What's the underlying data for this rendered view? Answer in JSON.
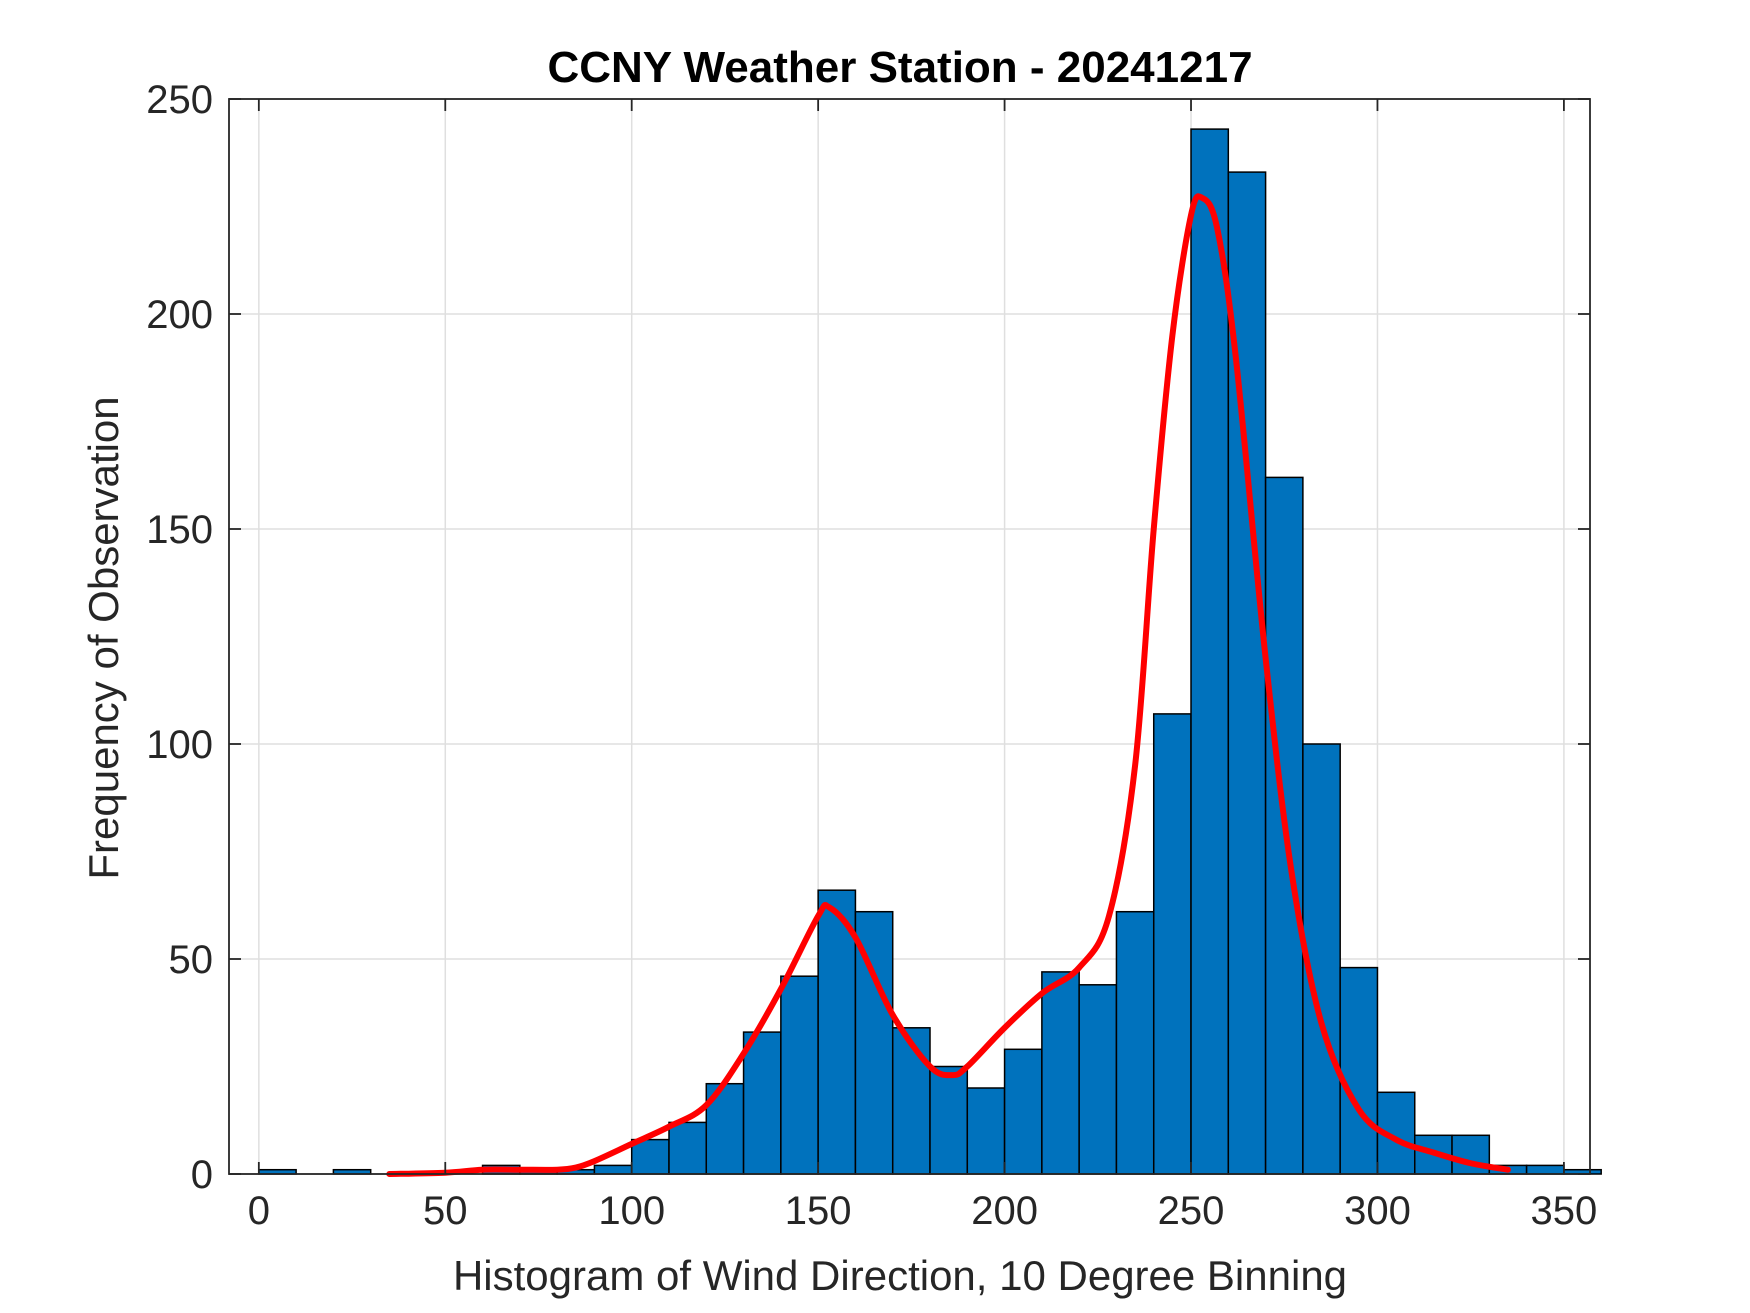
{
  "chart_data": {
    "type": "bar",
    "title": "CCNY Weather Station - 20241217",
    "xlabel": "Histogram of Wind Direction, 10 Degree Binning",
    "ylabel": "Frequency of Observation",
    "xlim": [
      -8,
      357
    ],
    "ylim": [
      0,
      250
    ],
    "xticks": [
      0,
      50,
      100,
      150,
      200,
      250,
      300,
      350
    ],
    "yticks": [
      0,
      50,
      100,
      150,
      200,
      250
    ],
    "grid": true,
    "bin_width": 10,
    "bin_edges": [
      0,
      10,
      20,
      30,
      40,
      50,
      60,
      70,
      80,
      90,
      100,
      110,
      120,
      130,
      140,
      150,
      160,
      170,
      180,
      190,
      200,
      210,
      220,
      230,
      240,
      250,
      260,
      270,
      280,
      290,
      300,
      310,
      320,
      330,
      340,
      350
    ],
    "values": [
      1,
      0,
      1,
      0,
      0,
      0,
      2,
      1,
      1,
      2,
      8,
      12,
      21,
      33,
      46,
      66,
      61,
      34,
      25,
      20,
      29,
      47,
      44,
      61,
      107,
      243,
      233,
      162,
      100,
      48,
      19,
      9,
      9,
      2,
      2,
      1
    ],
    "bar_color": "#0072BD",
    "bar_edge_color": "#000000",
    "fit_line": {
      "color": "#FF0000",
      "points": [
        [
          35,
          0
        ],
        [
          50,
          0.3
        ],
        [
          60,
          1
        ],
        [
          70,
          1
        ],
        [
          80,
          1
        ],
        [
          85,
          1.5
        ],
        [
          90,
          3
        ],
        [
          100,
          7
        ],
        [
          110,
          11
        ],
        [
          120,
          16
        ],
        [
          130,
          28
        ],
        [
          140,
          43
        ],
        [
          150,
          60
        ],
        [
          153,
          62
        ],
        [
          160,
          55
        ],
        [
          170,
          37
        ],
        [
          180,
          25
        ],
        [
          186,
          23
        ],
        [
          190,
          25
        ],
        [
          200,
          34
        ],
        [
          210,
          42
        ],
        [
          220,
          48
        ],
        [
          228,
          60
        ],
        [
          235,
          95
        ],
        [
          240,
          150
        ],
        [
          245,
          195
        ],
        [
          250,
          223
        ],
        [
          253,
          227
        ],
        [
          257,
          220
        ],
        [
          262,
          190
        ],
        [
          270,
          120
        ],
        [
          277,
          70
        ],
        [
          285,
          35
        ],
        [
          295,
          15
        ],
        [
          305,
          8
        ],
        [
          315,
          5
        ],
        [
          325,
          2.5
        ],
        [
          335,
          1
        ]
      ]
    }
  }
}
